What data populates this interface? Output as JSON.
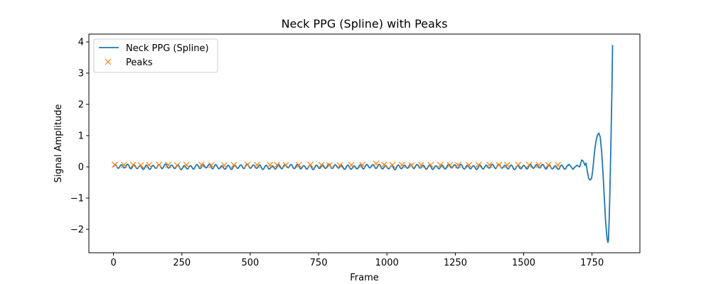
{
  "chart_data": {
    "type": "line",
    "title": "Neck PPG (Spline) with Peaks",
    "xlabel": "Frame",
    "ylabel": "Signal Amplitude",
    "xlim": [
      -90,
      1925
    ],
    "ylim": [
      -2.75,
      4.25
    ],
    "x_ticks": [
      0,
      250,
      500,
      750,
      1000,
      1250,
      1500,
      1750
    ],
    "y_ticks": [
      -2,
      -1,
      0,
      1,
      2,
      3,
      4
    ],
    "grid": false,
    "legend_position": "upper-left",
    "colors": {
      "spline": "#1f77b4",
      "peaks": "#ff7f0e"
    },
    "series": [
      {
        "name": "Neck PPG (Spline)",
        "kind": "line",
        "oscillation": {
          "x_start": 0,
          "x_end": 1665,
          "period": 23,
          "amplitude": 0.06
        },
        "tail_points": [
          [
            1665,
            0.08
          ],
          [
            1672,
            0.02
          ],
          [
            1680,
            -0.08
          ],
          [
            1688,
            0.0
          ],
          [
            1695,
            0.05
          ],
          [
            1700,
            0.02
          ],
          [
            1705,
            0.0
          ],
          [
            1712,
            0.22
          ],
          [
            1718,
            0.18
          ],
          [
            1724,
            0.05
          ],
          [
            1728,
            0.12
          ],
          [
            1732,
            -0.1
          ],
          [
            1737,
            -0.35
          ],
          [
            1742,
            -0.42
          ],
          [
            1748,
            -0.38
          ],
          [
            1752,
            -0.15
          ],
          [
            1756,
            0.2
          ],
          [
            1760,
            0.55
          ],
          [
            1765,
            0.85
          ],
          [
            1770,
            1.02
          ],
          [
            1775,
            1.08
          ],
          [
            1780,
            0.95
          ],
          [
            1785,
            0.5
          ],
          [
            1790,
            -0.2
          ],
          [
            1795,
            -1.0
          ],
          [
            1800,
            -1.8
          ],
          [
            1805,
            -2.3
          ],
          [
            1808,
            -2.42
          ],
          [
            1810,
            -2.35
          ],
          [
            1813,
            -1.6
          ],
          [
            1816,
            -0.5
          ],
          [
            1820,
            1.2
          ],
          [
            1823,
            2.6
          ],
          [
            1825,
            3.9
          ]
        ]
      },
      {
        "name": "Peaks",
        "kind": "scatter",
        "marker": "x",
        "x": [
          5,
          38,
          72,
          100,
          130,
          167,
          200,
          233,
          267,
          322,
          358,
          405,
          440,
          490,
          525,
          572,
          598,
          630,
          678,
          720,
          760,
          790,
          828,
          870,
          910,
          960,
          990,
          1020,
          1055,
          1090,
          1125,
          1160,
          1195,
          1230,
          1260,
          1300,
          1335,
          1375,
          1410,
          1440,
          1480,
          1520,
          1555,
          1590,
          1625
        ],
        "y": [
          0.07,
          0.06,
          0.06,
          0.05,
          0.06,
          0.06,
          0.06,
          0.05,
          0.06,
          0.07,
          0.05,
          0.05,
          0.06,
          0.07,
          0.06,
          0.06,
          0.06,
          0.06,
          0.06,
          0.07,
          0.06,
          0.05,
          0.05,
          0.06,
          0.06,
          0.1,
          0.07,
          0.06,
          0.06,
          0.05,
          0.06,
          0.06,
          0.06,
          0.06,
          0.06,
          0.06,
          0.06,
          0.06,
          0.06,
          0.06,
          0.07,
          0.06,
          0.06,
          0.06,
          0.06
        ]
      }
    ]
  }
}
